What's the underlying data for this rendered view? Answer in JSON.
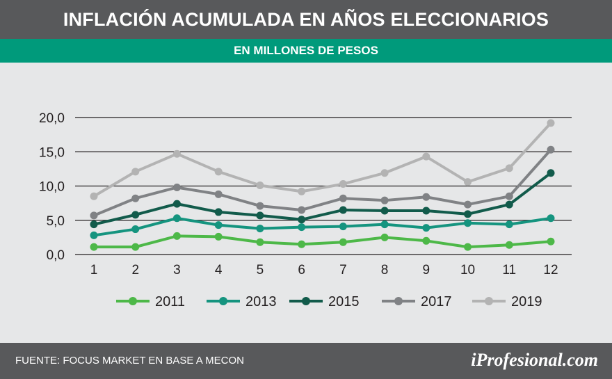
{
  "header": {
    "title": "INFLACIÓN ACUMULADA EN AÑOS ELECCIONARIOS",
    "subtitle": "EN MILLONES DE PESOS"
  },
  "footer": {
    "source": "FUENTE: FOCUS MARKET EN BASE A MECON",
    "brand": "iProfesional.com"
  },
  "chart_data": {
    "type": "line",
    "title": "INFLACIÓN ACUMULADA EN AÑOS ELECCIONARIOS",
    "subtitle": "EN MILLONES DE PESOS",
    "xlabel": "",
    "ylabel": "",
    "x": [
      1,
      2,
      3,
      4,
      5,
      6,
      7,
      8,
      9,
      10,
      11,
      12
    ],
    "x_tick_labels": [
      "1",
      "2",
      "3",
      "4",
      "5",
      "6",
      "7",
      "8",
      "9",
      "10",
      "11",
      "12"
    ],
    "y_tick_labels": [
      "0,0",
      "5,0",
      "10,0",
      "15,0",
      "20,0"
    ],
    "y_ticks": [
      0,
      5,
      10,
      15,
      20
    ],
    "ylim": [
      0,
      20
    ],
    "grid": true,
    "legend_position": "bottom",
    "series": [
      {
        "name": "2011",
        "color": "#4db848",
        "values": [
          1.1,
          1.1,
          2.7,
          2.6,
          1.8,
          1.5,
          1.8,
          2.5,
          2.0,
          1.1,
          1.4,
          1.9
        ]
      },
      {
        "name": "2013",
        "color": "#15947f",
        "values": [
          2.8,
          3.7,
          5.3,
          4.3,
          3.8,
          4.0,
          4.1,
          4.4,
          3.9,
          4.6,
          4.4,
          5.3
        ]
      },
      {
        "name": "2015",
        "color": "#125b4b",
        "values": [
          4.4,
          5.8,
          7.4,
          6.2,
          5.7,
          5.1,
          6.5,
          6.4,
          6.4,
          5.9,
          7.3,
          11.9
        ]
      },
      {
        "name": "2017",
        "color": "#808285",
        "values": [
          5.7,
          8.2,
          9.8,
          8.8,
          7.1,
          6.5,
          8.2,
          7.9,
          8.4,
          7.3,
          8.5,
          15.3
        ]
      },
      {
        "name": "2019",
        "color": "#b3b3b3",
        "values": [
          8.5,
          12.1,
          14.7,
          12.1,
          10.1,
          9.2,
          10.3,
          11.9,
          14.3,
          10.6,
          12.6,
          19.2
        ]
      }
    ]
  }
}
